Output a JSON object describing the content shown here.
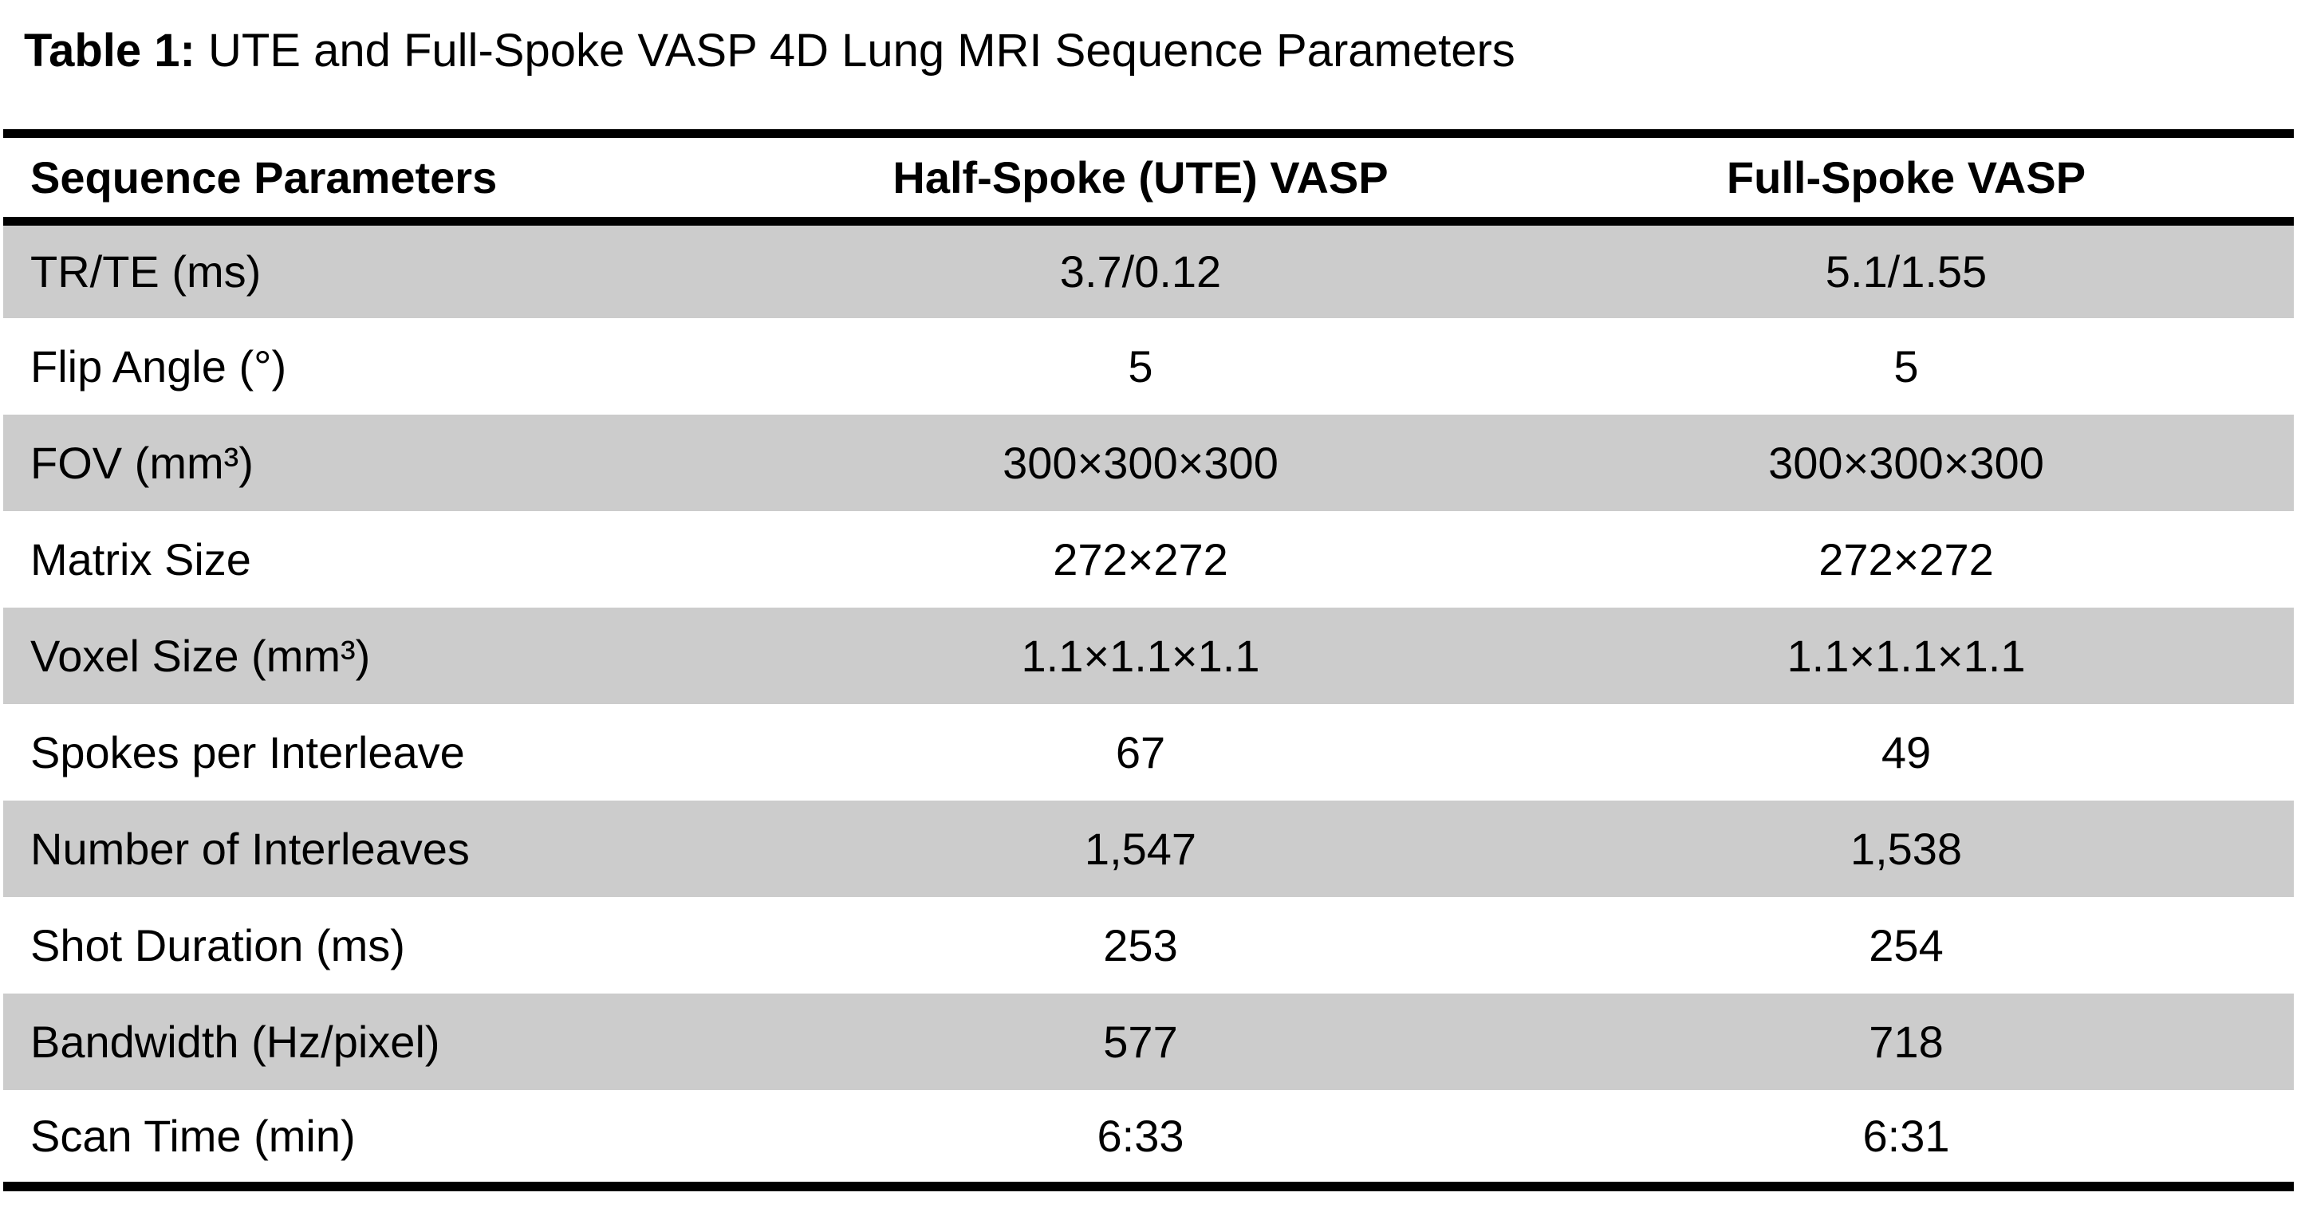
{
  "caption": {
    "label": "Table 1:",
    "text": " UTE and Full-Spoke VASP 4D Lung MRI Sequence Parameters"
  },
  "table": {
    "columns": {
      "param": "Sequence Parameters",
      "half_spoke": "Half-Spoke (UTE) VASP",
      "full_spoke": "Full-Spoke VASP"
    },
    "rows": [
      {
        "param": "TR/TE (ms)",
        "half_spoke": "3.7/0.12",
        "full_spoke": "5.1/1.55"
      },
      {
        "param": "Flip Angle (°)",
        "half_spoke": "5",
        "full_spoke": "5"
      },
      {
        "param": "FOV (mm³)",
        "half_spoke": "300×300×300",
        "full_spoke": "300×300×300"
      },
      {
        "param": "Matrix Size",
        "half_spoke": "272×272",
        "full_spoke": "272×272"
      },
      {
        "param": "Voxel Size (mm³)",
        "half_spoke": "1.1×1.1×1.1",
        "full_spoke": "1.1×1.1×1.1"
      },
      {
        "param": "Spokes per Interleave",
        "half_spoke": "67",
        "full_spoke": "49"
      },
      {
        "param": "Number of Interleaves",
        "half_spoke": "1,547",
        "full_spoke": "1,538"
      },
      {
        "param": "Shot Duration (ms)",
        "half_spoke": "253",
        "full_spoke": "254"
      },
      {
        "param": "Bandwidth (Hz/pixel)",
        "half_spoke": "577",
        "full_spoke": "718"
      },
      {
        "param": "Scan Time (min)",
        "half_spoke": "6:33",
        "full_spoke": "6:31"
      }
    ],
    "colors": {
      "row_shade": "#cccccc",
      "rule": "#000000",
      "background": "#ffffff"
    }
  }
}
